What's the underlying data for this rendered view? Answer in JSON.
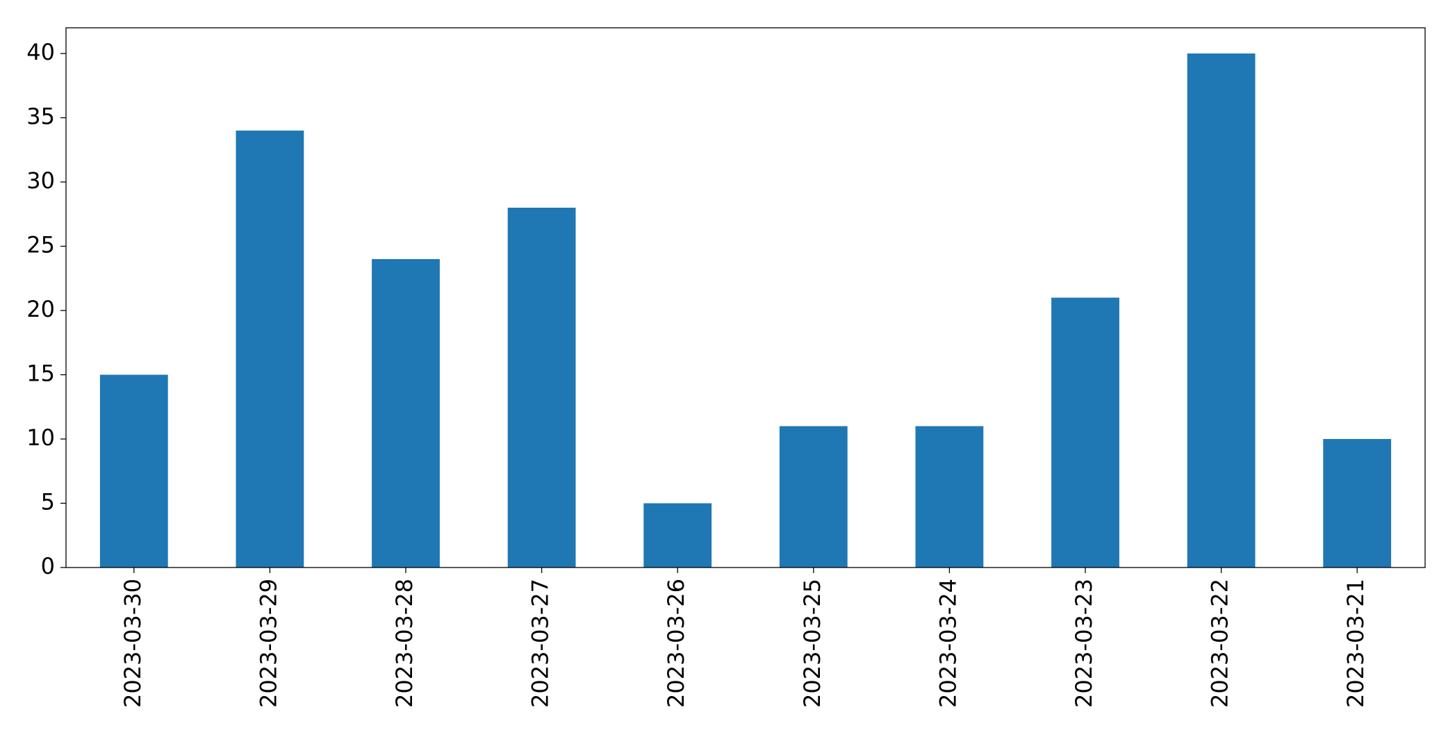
{
  "chart_data": {
    "type": "bar",
    "categories": [
      "2023-03-30",
      "2023-03-29",
      "2023-03-28",
      "2023-03-27",
      "2023-03-26",
      "2023-03-25",
      "2023-03-24",
      "2023-03-23",
      "2023-03-22",
      "2023-03-21"
    ],
    "values": [
      15,
      34,
      24,
      28,
      5,
      11,
      11,
      21,
      40,
      10
    ],
    "color": "#1f77b4",
    "ylim": [
      0,
      42
    ],
    "yticks": [
      0,
      5,
      10,
      15,
      20,
      25,
      30,
      35,
      40
    ],
    "grid": false
  }
}
